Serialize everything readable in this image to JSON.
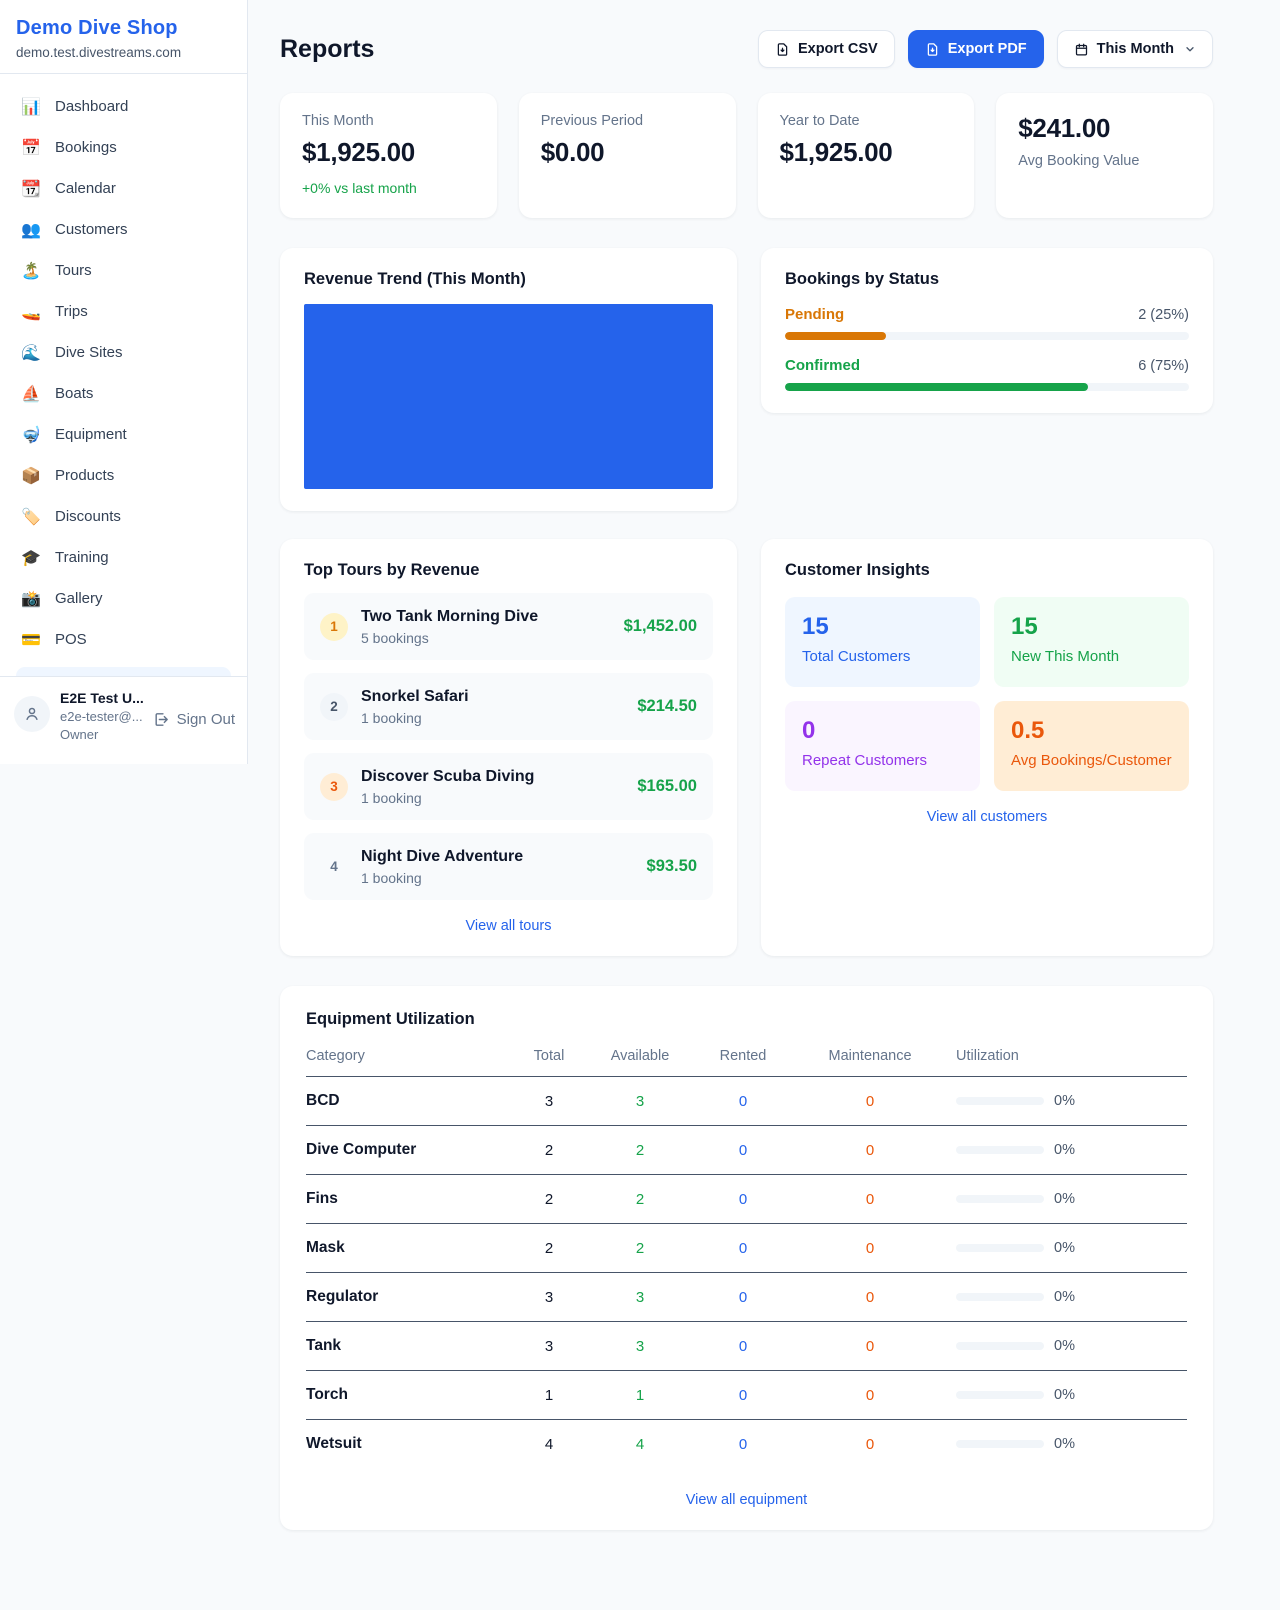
{
  "colors": {
    "accent": "#2563eb",
    "green": "#16a34a",
    "amber": "#d97706",
    "orange": "#ea580c",
    "purple": "#9333ea",
    "page_bg": "#f8fafc",
    "chart_bar": "#2563eb"
  },
  "sidebar": {
    "shop_name": "Demo Dive Shop",
    "shop_domain": "demo.test.divestreams.com",
    "items": [
      {
        "icon": "📊",
        "label": "Dashboard"
      },
      {
        "icon": "📅",
        "label": "Bookings"
      },
      {
        "icon": "📆",
        "label": "Calendar"
      },
      {
        "icon": "👥",
        "label": "Customers"
      },
      {
        "icon": "🏝️",
        "label": "Tours"
      },
      {
        "icon": "🚤",
        "label": "Trips"
      },
      {
        "icon": "🌊",
        "label": "Dive Sites"
      },
      {
        "icon": "⛵",
        "label": "Boats"
      },
      {
        "icon": "🤿",
        "label": "Equipment"
      },
      {
        "icon": "📦",
        "label": "Products"
      },
      {
        "icon": "🏷️",
        "label": "Discounts"
      },
      {
        "icon": "🎓",
        "label": "Training"
      },
      {
        "icon": "📸",
        "label": "Gallery"
      },
      {
        "icon": "💳",
        "label": "POS"
      }
    ],
    "user": {
      "name": "E2E Test U...",
      "email": "e2e-tester@...",
      "role": "Owner",
      "sign_out_label": "Sign Out"
    }
  },
  "header": {
    "title": "Reports",
    "export_csv_label": "Export CSV",
    "export_pdf_label": "Export PDF",
    "period_label": "This Month"
  },
  "stats": [
    {
      "label": "This Month",
      "value": "$1,925.00",
      "delta": "+0% vs last month"
    },
    {
      "label": "Previous Period",
      "value": "$0.00"
    },
    {
      "label": "Year to Date",
      "value": "$1,925.00"
    },
    {
      "label": "Avg Booking Value",
      "value": "$241.00"
    }
  ],
  "revenue_trend": {
    "title": "Revenue Trend (This Month)"
  },
  "chart_data": {
    "type": "bar",
    "title": "Revenue Trend (This Month)",
    "categories": [
      "This Month"
    ],
    "values": [
      1925
    ],
    "color": "#2563eb",
    "axes": "none",
    "note_layout": "single bar fills entire plot area"
  },
  "bookings_by_status": {
    "title": "Bookings by Status",
    "rows": [
      {
        "label": "Pending",
        "value_text": "2 (25%)",
        "percent": 25,
        "color": "#d97706"
      },
      {
        "label": "Confirmed",
        "value_text": "6 (75%)",
        "percent": 75,
        "color": "#16a34a"
      }
    ]
  },
  "top_tours": {
    "title": "Top Tours by Revenue",
    "rows": [
      {
        "rank": "1",
        "name": "Two Tank Morning Dive",
        "bookings": "5 bookings",
        "amount": "$1,452.00"
      },
      {
        "rank": "2",
        "name": "Snorkel Safari",
        "bookings": "1 booking",
        "amount": "$214.50"
      },
      {
        "rank": "3",
        "name": "Discover Scuba Diving",
        "bookings": "1 booking",
        "amount": "$165.00"
      },
      {
        "rank": "4",
        "name": "Night Dive Adventure",
        "bookings": "1 booking",
        "amount": "$93.50"
      }
    ],
    "view_all_label": "View all tours"
  },
  "customer_insights": {
    "title": "Customer Insights",
    "tiles": [
      {
        "value": "15",
        "label": "Total Customers"
      },
      {
        "value": "15",
        "label": "New This Month"
      },
      {
        "value": "0",
        "label": "Repeat Customers"
      },
      {
        "value": "0.5",
        "label": "Avg Bookings/Customer"
      }
    ],
    "view_all_label": "View all customers"
  },
  "equipment": {
    "title": "Equipment Utilization",
    "columns": [
      "Category",
      "Total",
      "Available",
      "Rented",
      "Maintenance",
      "Utilization"
    ],
    "rows": [
      {
        "category": "BCD",
        "total": "3",
        "available": "3",
        "rented": "0",
        "maintenance": "0",
        "utilization_percent": 0,
        "utilization_text": "0%"
      },
      {
        "category": "Dive Computer",
        "total": "2",
        "available": "2",
        "rented": "0",
        "maintenance": "0",
        "utilization_percent": 0,
        "utilization_text": "0%"
      },
      {
        "category": "Fins",
        "total": "2",
        "available": "2",
        "rented": "0",
        "maintenance": "0",
        "utilization_percent": 0,
        "utilization_text": "0%"
      },
      {
        "category": "Mask",
        "total": "2",
        "available": "2",
        "rented": "0",
        "maintenance": "0",
        "utilization_percent": 0,
        "utilization_text": "0%"
      },
      {
        "category": "Regulator",
        "total": "3",
        "available": "3",
        "rented": "0",
        "maintenance": "0",
        "utilization_percent": 0,
        "utilization_text": "0%"
      },
      {
        "category": "Tank",
        "total": "3",
        "available": "3",
        "rented": "0",
        "maintenance": "0",
        "utilization_percent": 0,
        "utilization_text": "0%"
      },
      {
        "category": "Torch",
        "total": "1",
        "available": "1",
        "rented": "0",
        "maintenance": "0",
        "utilization_percent": 0,
        "utilization_text": "0%"
      },
      {
        "category": "Wetsuit",
        "total": "4",
        "available": "4",
        "rented": "0",
        "maintenance": "0",
        "utilization_percent": 0,
        "utilization_text": "0%"
      }
    ],
    "view_all_label": "View all equipment"
  }
}
